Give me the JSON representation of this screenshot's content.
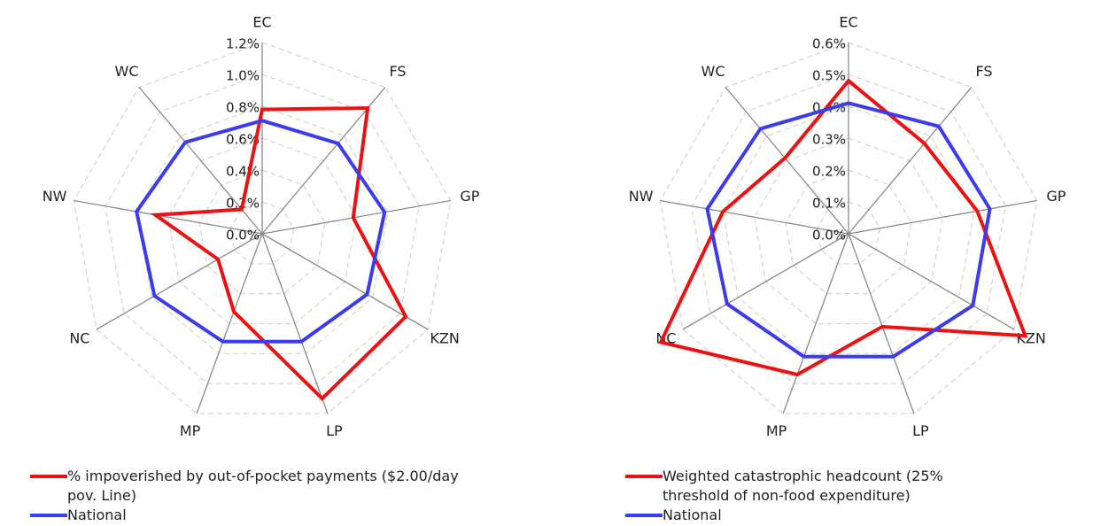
{
  "chart_data": [
    {
      "type": "radar",
      "categories": [
        "EC",
        "FS",
        "GP",
        "KZN",
        "LP",
        "MP",
        "NC",
        "NW",
        "WC"
      ],
      "rlim": [
        0,
        1.2
      ],
      "rticks": [
        {
          "value": 0,
          "label": "0.0%"
        },
        {
          "value": 0.2,
          "label": "0.2%"
        },
        {
          "value": 0.4,
          "label": "0.4%"
        },
        {
          "value": 0.6,
          "label": "0.6%"
        },
        {
          "value": 0.8,
          "label": "0.8%"
        },
        {
          "value": 1.0,
          "label": "1.0%"
        },
        {
          "value": 1.2,
          "label": "1.2%"
        }
      ],
      "series": [
        {
          "name": "% impoverished by out-of-pocket payments ($2.00/day pov. Line)",
          "color": "#ee1111",
          "values": [
            0.78,
            1.03,
            0.58,
            1.04,
            1.1,
            0.52,
            0.32,
            0.68,
            0.2
          ]
        },
        {
          "name": "National",
          "color": "#3c3cee",
          "values": [
            0.71,
            0.74,
            0.78,
            0.76,
            0.72,
            0.72,
            0.78,
            0.8,
            0.75
          ]
        }
      ]
    },
    {
      "type": "radar",
      "categories": [
        "EC",
        "FS",
        "GP",
        "KZN",
        "LP",
        "MP",
        "NC",
        "NW",
        "WC"
      ],
      "rlim": [
        0,
        0.6
      ],
      "rticks": [
        {
          "value": 0,
          "label": "0.0%"
        },
        {
          "value": 0.1,
          "label": "0.1%"
        },
        {
          "value": 0.2,
          "label": "0.2%"
        },
        {
          "value": 0.3,
          "label": "0.3%"
        },
        {
          "value": 0.4,
          "label": "0.4%"
        },
        {
          "value": 0.5,
          "label": "0.5%"
        },
        {
          "value": 0.6,
          "label": "0.6%"
        }
      ],
      "series": [
        {
          "name": "Weighted catastrophic headcount (25% threshold of non-food expenditure)",
          "color": "#ee1111",
          "values": [
            0.48,
            0.37,
            0.41,
            0.64,
            0.31,
            0.47,
            0.68,
            0.4,
            0.31
          ]
        },
        {
          "name": "National",
          "color": "#3c3cee",
          "values": [
            0.41,
            0.44,
            0.45,
            0.45,
            0.41,
            0.41,
            0.44,
            0.45,
            0.43
          ]
        }
      ]
    }
  ]
}
